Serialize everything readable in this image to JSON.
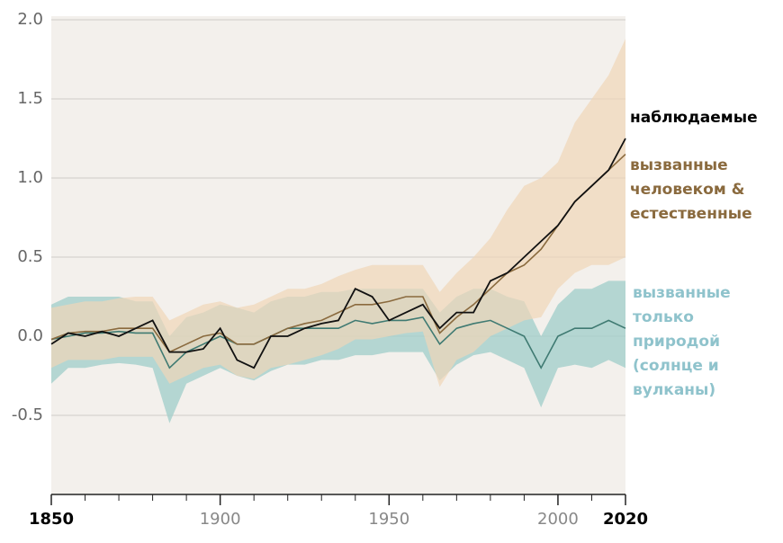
{
  "chart_data": {
    "type": "line",
    "x": [
      1850,
      1855,
      1860,
      1865,
      1870,
      1875,
      1880,
      1885,
      1890,
      1895,
      1900,
      1905,
      1910,
      1915,
      1920,
      1925,
      1930,
      1935,
      1940,
      1945,
      1950,
      1955,
      1960,
      1965,
      1970,
      1975,
      1980,
      1985,
      1990,
      1995,
      2000,
      2005,
      2010,
      2015,
      2020
    ],
    "xlim": [
      1850,
      2020
    ],
    "xticks": [
      1850,
      1900,
      1950,
      2000,
      2020
    ],
    "xminorticks": [
      1860,
      1870,
      1880,
      1890,
      1910,
      1920,
      1930,
      1940,
      1960,
      1970,
      1980,
      1990,
      2010
    ],
    "ylim": [
      -1,
      2
    ],
    "yticks": [
      {
        "value": 2,
        "label": "2.0"
      },
      1.5,
      {
        "value": 1,
        "label": "1.0"
      },
      0.5,
      {
        "value": 0,
        "label": "0.0"
      },
      -0.5
    ],
    "grid": true,
    "series": [
      {
        "name": "наблюдаемые",
        "label_lines": [
          "наблюдаемые"
        ],
        "color": "#111111",
        "values": [
          -0.05,
          0.02,
          0.0,
          0.03,
          0.0,
          0.05,
          0.1,
          -0.1,
          -0.1,
          -0.08,
          0.05,
          -0.15,
          -0.2,
          0.0,
          0.0,
          0.05,
          0.08,
          0.1,
          0.3,
          0.25,
          0.1,
          0.15,
          0.2,
          0.05,
          0.15,
          0.15,
          0.35,
          0.4,
          0.5,
          0.6,
          0.7,
          0.85,
          0.95,
          1.05,
          1.25
        ]
      },
      {
        "name": "вызванные человеком & естественные",
        "label_lines": [
          "вызванные",
          "человеком &",
          "естественные"
        ],
        "color": "#8a6a3e",
        "band_color": "#efd6b8",
        "values": [
          -0.02,
          0.02,
          0.03,
          0.03,
          0.05,
          0.05,
          0.05,
          -0.1,
          -0.05,
          0.0,
          0.02,
          -0.05,
          -0.05,
          0.0,
          0.05,
          0.08,
          0.1,
          0.15,
          0.2,
          0.2,
          0.22,
          0.25,
          0.25,
          0.02,
          0.12,
          0.2,
          0.3,
          0.4,
          0.45,
          0.55,
          0.7,
          0.85,
          0.95,
          1.05,
          1.15
        ],
        "upper": [
          0.18,
          0.2,
          0.22,
          0.22,
          0.24,
          0.25,
          0.25,
          0.1,
          0.15,
          0.2,
          0.22,
          0.18,
          0.2,
          0.25,
          0.3,
          0.3,
          0.33,
          0.38,
          0.42,
          0.45,
          0.45,
          0.45,
          0.45,
          0.28,
          0.4,
          0.5,
          0.62,
          0.8,
          0.95,
          1.0,
          1.1,
          1.35,
          1.5,
          1.65,
          1.88
        ],
        "lower": [
          -0.2,
          -0.15,
          -0.15,
          -0.15,
          -0.13,
          -0.13,
          -0.13,
          -0.3,
          -0.25,
          -0.2,
          -0.18,
          -0.25,
          -0.27,
          -0.2,
          -0.18,
          -0.15,
          -0.12,
          -0.08,
          -0.02,
          -0.02,
          0.0,
          0.02,
          0.03,
          -0.32,
          -0.15,
          -0.1,
          0.0,
          0.05,
          0.1,
          0.12,
          0.3,
          0.4,
          0.45,
          0.45,
          0.5
        ]
      },
      {
        "name": "вызванные только природой (солнце и вулканы)",
        "label_lines": [
          "вызванные",
          "только",
          "природой",
          "(солнце и",
          "вулканы)"
        ],
        "color": "#3f7a72",
        "band_color": "#9fcdc9",
        "values": [
          -0.02,
          0.0,
          0.02,
          0.02,
          0.03,
          0.02,
          0.02,
          -0.2,
          -0.1,
          -0.05,
          0.0,
          -0.05,
          -0.05,
          0.0,
          0.05,
          0.05,
          0.05,
          0.05,
          0.1,
          0.08,
          0.1,
          0.1,
          0.12,
          -0.05,
          0.05,
          0.08,
          0.1,
          0.05,
          0.0,
          -0.2,
          0.0,
          0.05,
          0.05,
          0.1,
          0.05
        ],
        "upper": [
          0.2,
          0.25,
          0.25,
          0.25,
          0.25,
          0.22,
          0.22,
          0.0,
          0.12,
          0.15,
          0.2,
          0.18,
          0.15,
          0.22,
          0.25,
          0.25,
          0.28,
          0.28,
          0.3,
          0.3,
          0.3,
          0.3,
          0.3,
          0.15,
          0.25,
          0.3,
          0.3,
          0.25,
          0.22,
          0.0,
          0.2,
          0.3,
          0.3,
          0.35,
          0.35
        ],
        "lower": [
          -0.3,
          -0.2,
          -0.2,
          -0.18,
          -0.17,
          -0.18,
          -0.2,
          -0.55,
          -0.3,
          -0.25,
          -0.2,
          -0.25,
          -0.28,
          -0.22,
          -0.18,
          -0.18,
          -0.15,
          -0.15,
          -0.12,
          -0.12,
          -0.1,
          -0.1,
          -0.1,
          -0.28,
          -0.18,
          -0.12,
          -0.1,
          -0.15,
          -0.2,
          -0.45,
          -0.2,
          -0.18,
          -0.2,
          -0.15,
          -0.2
        ]
      }
    ]
  }
}
